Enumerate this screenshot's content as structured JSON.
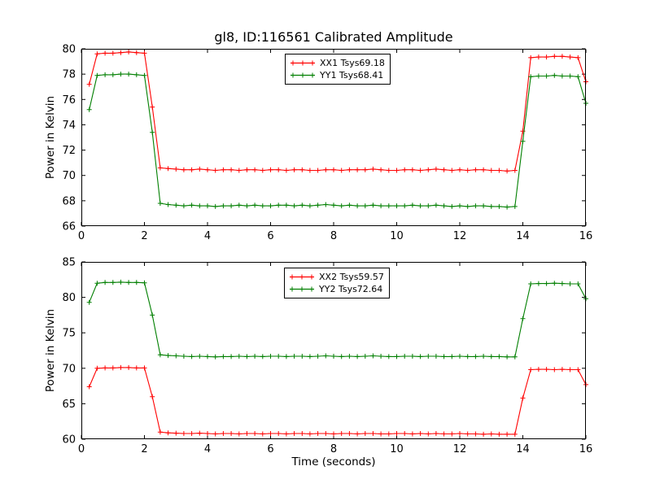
{
  "figure_title": "gl8, ID:116561 Calibrated Amplitude",
  "colors": {
    "xx_series": "#ff0000",
    "yy_series": "#007f00",
    "axis": "#000000",
    "background": "#ffffff"
  },
  "chart_data": [
    {
      "type": "line",
      "title": "gl8, ID:116561 Calibrated Amplitude",
      "xlabel": "",
      "ylabel": "Power in Kelvin",
      "xlim": [
        0,
        16
      ],
      "ylim": [
        66,
        80
      ],
      "xticks": [
        0,
        2,
        4,
        6,
        8,
        10,
        12,
        14,
        16
      ],
      "yticks": [
        66,
        68,
        70,
        72,
        74,
        76,
        78,
        80
      ],
      "grid": false,
      "legend_position": "upper center",
      "marker": "plus",
      "x": [
        0.25,
        0.5,
        0.75,
        1,
        1.25,
        1.5,
        1.75,
        2,
        2.25,
        2.5,
        2.75,
        3,
        3.25,
        3.5,
        3.75,
        4,
        4.25,
        4.5,
        4.75,
        5,
        5.25,
        5.5,
        5.75,
        6,
        6.25,
        6.5,
        6.75,
        7,
        7.25,
        7.5,
        7.75,
        8,
        8.25,
        8.5,
        8.75,
        9,
        9.25,
        9.5,
        9.75,
        10,
        10.25,
        10.5,
        10.75,
        11,
        11.25,
        11.5,
        11.75,
        12,
        12.25,
        12.5,
        12.75,
        13,
        13.25,
        13.5,
        13.75,
        14,
        14.25,
        14.5,
        14.75,
        15,
        15.25,
        15.5,
        15.75,
        16
      ],
      "series": [
        {
          "name": "XX1 Tsys69.18",
          "color": "#ff0000",
          "values": [
            77.2,
            79.6,
            79.65,
            79.65,
            79.7,
            79.75,
            79.7,
            79.65,
            75.4,
            70.6,
            70.55,
            70.5,
            70.45,
            70.45,
            70.5,
            70.45,
            70.4,
            70.45,
            70.45,
            70.4,
            70.45,
            70.45,
            70.4,
            70.45,
            70.45,
            70.4,
            70.45,
            70.45,
            70.4,
            70.4,
            70.45,
            70.45,
            70.4,
            70.45,
            70.45,
            70.45,
            70.5,
            70.45,
            70.4,
            70.4,
            70.45,
            70.45,
            70.4,
            70.45,
            70.5,
            70.45,
            70.4,
            70.45,
            70.4,
            70.45,
            70.45,
            70.4,
            70.4,
            70.35,
            70.4,
            73.5,
            79.3,
            79.35,
            79.35,
            79.4,
            79.4,
            79.35,
            79.3,
            77.4
          ]
        },
        {
          "name": "YY1 Tsys68.41",
          "color": "#007f00",
          "values": [
            75.2,
            77.9,
            77.95,
            77.95,
            78.0,
            78.0,
            77.95,
            77.9,
            73.4,
            67.8,
            67.7,
            67.65,
            67.6,
            67.65,
            67.6,
            67.6,
            67.55,
            67.6,
            67.6,
            67.65,
            67.6,
            67.65,
            67.6,
            67.6,
            67.65,
            67.65,
            67.6,
            67.65,
            67.6,
            67.65,
            67.7,
            67.65,
            67.6,
            67.65,
            67.6,
            67.6,
            67.65,
            67.6,
            67.6,
            67.6,
            67.6,
            67.65,
            67.6,
            67.6,
            67.65,
            67.6,
            67.55,
            67.6,
            67.55,
            67.6,
            67.6,
            67.55,
            67.55,
            67.5,
            67.55,
            72.7,
            77.8,
            77.85,
            77.85,
            77.9,
            77.85,
            77.85,
            77.8,
            75.7
          ]
        }
      ]
    },
    {
      "type": "line",
      "title": "",
      "xlabel": "Time (seconds)",
      "ylabel": "Power in Kelvin",
      "xlim": [
        0,
        16
      ],
      "ylim": [
        60,
        85
      ],
      "xticks": [
        0,
        2,
        4,
        6,
        8,
        10,
        12,
        14,
        16
      ],
      "yticks": [
        60,
        65,
        70,
        75,
        80,
        85
      ],
      "grid": false,
      "legend_position": "upper center",
      "marker": "plus",
      "x": [
        0.25,
        0.5,
        0.75,
        1,
        1.25,
        1.5,
        1.75,
        2,
        2.25,
        2.5,
        2.75,
        3,
        3.25,
        3.5,
        3.75,
        4,
        4.25,
        4.5,
        4.75,
        5,
        5.25,
        5.5,
        5.75,
        6,
        6.25,
        6.5,
        6.75,
        7,
        7.25,
        7.5,
        7.75,
        8,
        8.25,
        8.5,
        8.75,
        9,
        9.25,
        9.5,
        9.75,
        10,
        10.25,
        10.5,
        10.75,
        11,
        11.25,
        11.5,
        11.75,
        12,
        12.25,
        12.5,
        12.75,
        13,
        13.25,
        13.5,
        13.75,
        14,
        14.25,
        14.5,
        14.75,
        15,
        15.25,
        15.5,
        15.75,
        16
      ],
      "series": [
        {
          "name": "XX2 Tsys59.57",
          "color": "#ff0000",
          "values": [
            67.4,
            70.0,
            70.05,
            70.05,
            70.1,
            70.1,
            70.05,
            70.05,
            66.0,
            61.0,
            60.9,
            60.85,
            60.8,
            60.8,
            60.85,
            60.8,
            60.75,
            60.8,
            60.8,
            60.75,
            60.8,
            60.8,
            60.75,
            60.8,
            60.8,
            60.75,
            60.8,
            60.8,
            60.75,
            60.8,
            60.8,
            60.75,
            60.8,
            60.8,
            60.75,
            60.8,
            60.8,
            60.75,
            60.75,
            60.8,
            60.8,
            60.75,
            60.8,
            60.75,
            60.8,
            60.75,
            60.75,
            60.8,
            60.75,
            60.75,
            60.7,
            60.75,
            60.7,
            60.7,
            60.7,
            65.8,
            69.8,
            69.85,
            69.85,
            69.8,
            69.85,
            69.8,
            69.8,
            67.7
          ]
        },
        {
          "name": "YY2 Tsys72.64",
          "color": "#007f00",
          "values": [
            79.3,
            82.0,
            82.1,
            82.1,
            82.15,
            82.1,
            82.1,
            82.05,
            77.5,
            71.9,
            71.8,
            71.75,
            71.7,
            71.65,
            71.7,
            71.65,
            71.6,
            71.65,
            71.65,
            71.7,
            71.65,
            71.7,
            71.65,
            71.7,
            71.7,
            71.65,
            71.7,
            71.7,
            71.65,
            71.7,
            71.75,
            71.7,
            71.65,
            71.7,
            71.65,
            71.7,
            71.75,
            71.7,
            71.65,
            71.65,
            71.7,
            71.7,
            71.65,
            71.7,
            71.7,
            71.65,
            71.65,
            71.7,
            71.65,
            71.65,
            71.7,
            71.65,
            71.65,
            71.6,
            71.6,
            77.0,
            81.9,
            81.95,
            81.95,
            82.0,
            81.95,
            81.9,
            81.9,
            79.8
          ]
        }
      ]
    }
  ]
}
